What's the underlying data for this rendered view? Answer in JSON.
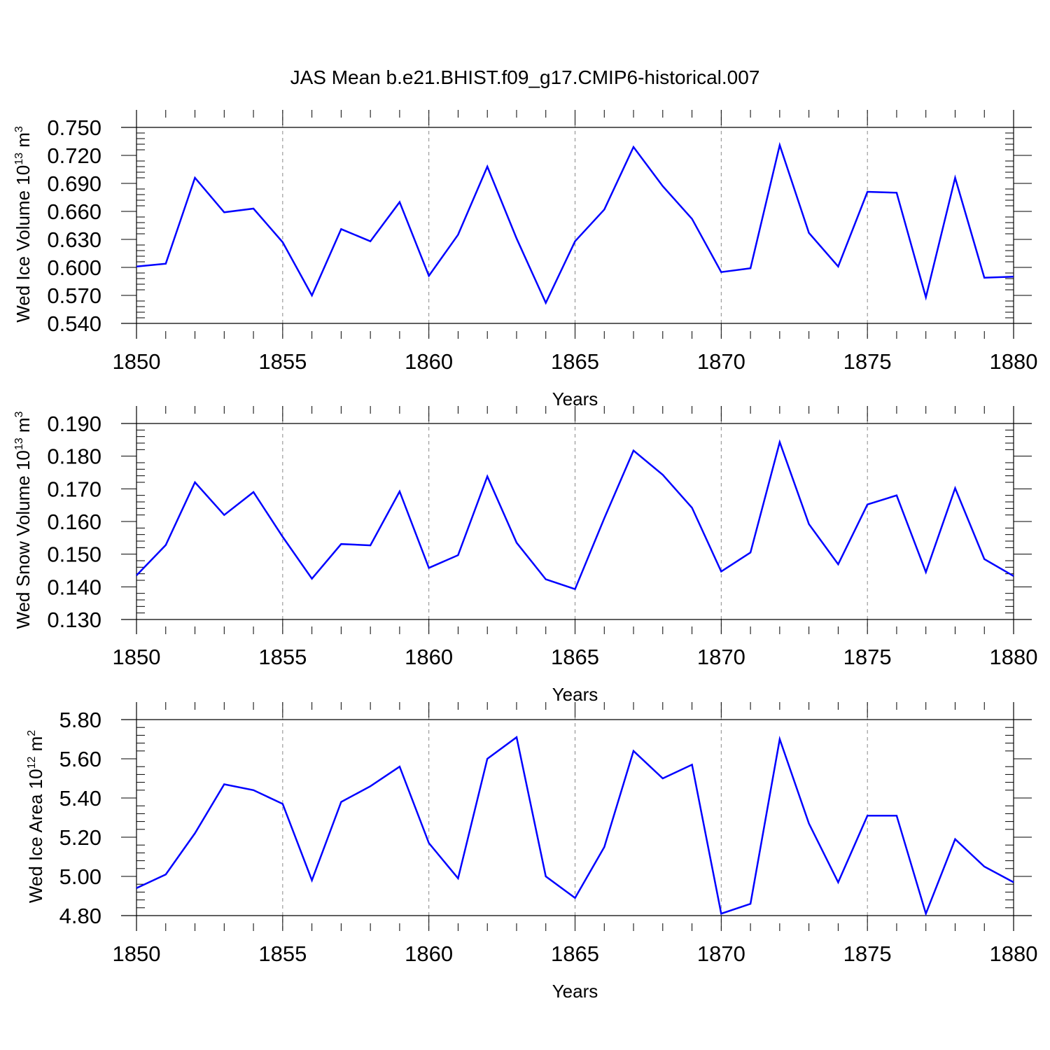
{
  "title": "JAS Mean b.e21.BHIST.f09_g17.CMIP6-historical.007",
  "line_color": "#0000ff",
  "axis_color": "#000000",
  "grid_color": "#888888",
  "chart_data": [
    {
      "type": "line",
      "series_name": "Wed Ice Volume",
      "ylabel": "Wed Ice Volume 10",
      "ylabel_exp": "13",
      "ylabel_unit": "m",
      "ylabel_unit_exp": "3",
      "xlabel": "Years",
      "xlim": [
        1850,
        1880
      ],
      "ylim": [
        0.54,
        0.75
      ],
      "yticks": [
        0.54,
        0.57,
        0.6,
        0.63,
        0.66,
        0.69,
        0.72,
        0.75
      ],
      "ytick_labels": [
        "0.540",
        "0.570",
        "0.600",
        "0.630",
        "0.660",
        "0.690",
        "0.720",
        "0.750"
      ],
      "xticks": [
        1850,
        1855,
        1860,
        1865,
        1870,
        1875,
        1880
      ],
      "xtick_labels": [
        "1850",
        "1855",
        "1860",
        "1865",
        "1870",
        "1875",
        "1880"
      ],
      "grid_x": [
        1855,
        1860,
        1865,
        1870,
        1875
      ],
      "x": [
        1850,
        1851,
        1852,
        1853,
        1854,
        1855,
        1856,
        1857,
        1858,
        1859,
        1860,
        1861,
        1862,
        1863,
        1864,
        1865,
        1866,
        1867,
        1868,
        1869,
        1870,
        1871,
        1872,
        1873,
        1874,
        1875,
        1876,
        1877,
        1878,
        1879,
        1880
      ],
      "values": [
        0.601,
        0.604,
        0.696,
        0.659,
        0.663,
        0.627,
        0.57,
        0.641,
        0.628,
        0.67,
        0.591,
        0.635,
        0.708,
        0.631,
        0.562,
        0.628,
        0.662,
        0.729,
        0.687,
        0.652,
        0.595,
        0.599,
        0.731,
        0.637,
        0.601,
        0.681,
        0.68,
        0.568,
        0.696,
        0.589,
        0.59
      ]
    },
    {
      "type": "line",
      "series_name": "Wed Snow Volume",
      "ylabel": "Wed Snow Volume 10",
      "ylabel_exp": "13",
      "ylabel_unit": "m",
      "ylabel_unit_exp": "3",
      "xlabel": "Years",
      "xlim": [
        1850,
        1880
      ],
      "ylim": [
        0.13,
        0.19
      ],
      "yticks": [
        0.13,
        0.14,
        0.15,
        0.16,
        0.17,
        0.18,
        0.19
      ],
      "ytick_labels": [
        "0.130",
        "0.140",
        "0.150",
        "0.160",
        "0.170",
        "0.180",
        "0.190"
      ],
      "xticks": [
        1850,
        1855,
        1860,
        1865,
        1870,
        1875,
        1880
      ],
      "xtick_labels": [
        "1850",
        "1855",
        "1860",
        "1865",
        "1870",
        "1875",
        "1880"
      ],
      "grid_x": [
        1855,
        1860,
        1865,
        1870,
        1875
      ],
      "x": [
        1850,
        1851,
        1852,
        1853,
        1854,
        1855,
        1856,
        1857,
        1858,
        1859,
        1860,
        1861,
        1862,
        1863,
        1864,
        1865,
        1866,
        1867,
        1868,
        1869,
        1870,
        1871,
        1872,
        1873,
        1874,
        1875,
        1876,
        1877,
        1878,
        1879,
        1880
      ],
      "values": [
        0.1435,
        0.1528,
        0.172,
        0.162,
        0.169,
        0.1553,
        0.1425,
        0.1531,
        0.1527,
        0.1692,
        0.1458,
        0.1497,
        0.1738,
        0.1535,
        0.1423,
        0.1393,
        0.161,
        0.1817,
        0.1743,
        0.1642,
        0.1447,
        0.1505,
        0.1843,
        0.1592,
        0.1469,
        0.1652,
        0.168,
        0.1445,
        0.1702,
        0.1485,
        0.1433
      ]
    },
    {
      "type": "line",
      "series_name": "Wed Ice Area",
      "ylabel": "Wed Ice Area 10",
      "ylabel_exp": "12",
      "ylabel_unit": "m",
      "ylabel_unit_exp": "2",
      "xlabel": "Years",
      "xlim": [
        1850,
        1880
      ],
      "ylim": [
        4.8,
        5.8
      ],
      "yticks": [
        4.8,
        5.0,
        5.2,
        5.4,
        5.6,
        5.8
      ],
      "ytick_labels": [
        "4.80",
        "5.00",
        "5.20",
        "5.40",
        "5.60",
        "5.80"
      ],
      "xticks": [
        1850,
        1855,
        1860,
        1865,
        1870,
        1875,
        1880
      ],
      "xtick_labels": [
        "1850",
        "1855",
        "1860",
        "1865",
        "1870",
        "1875",
        "1880"
      ],
      "grid_x": [
        1855,
        1860,
        1865,
        1870,
        1875
      ],
      "x": [
        1850,
        1851,
        1852,
        1853,
        1854,
        1855,
        1856,
        1857,
        1858,
        1859,
        1860,
        1861,
        1862,
        1863,
        1864,
        1865,
        1866,
        1867,
        1868,
        1869,
        1870,
        1871,
        1872,
        1873,
        1874,
        1875,
        1876,
        1877,
        1878,
        1879,
        1880
      ],
      "values": [
        4.94,
        5.01,
        5.22,
        5.47,
        5.44,
        5.37,
        4.98,
        5.38,
        5.46,
        5.56,
        5.17,
        4.99,
        5.6,
        5.71,
        5.0,
        4.89,
        5.15,
        5.64,
        5.5,
        5.57,
        4.81,
        4.86,
        5.7,
        5.27,
        4.97,
        5.31,
        5.31,
        4.81,
        5.19,
        5.05,
        4.97
      ]
    }
  ]
}
